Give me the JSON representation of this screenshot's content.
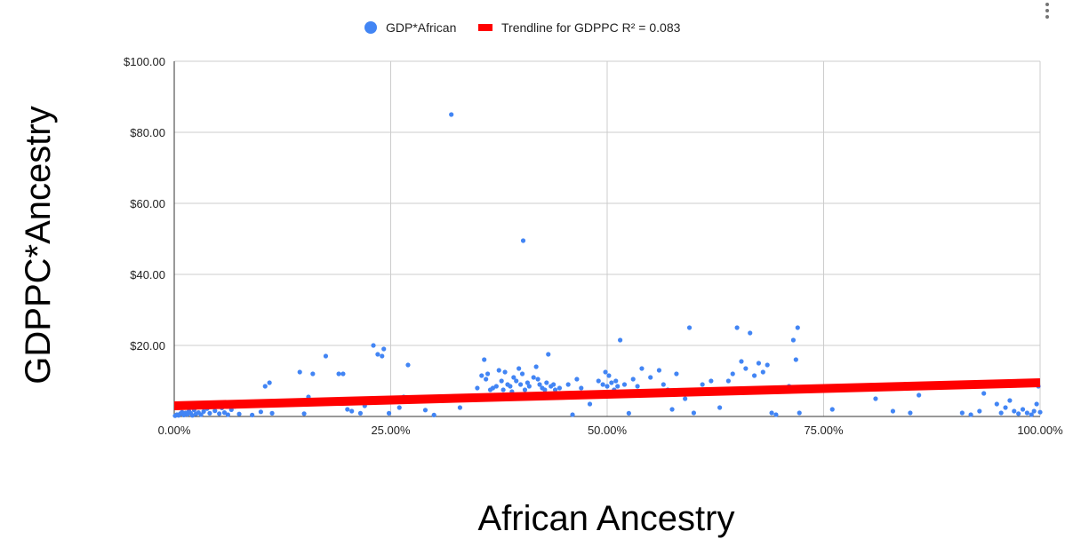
{
  "chart_data": {
    "type": "scatter",
    "title": "",
    "xlabel": "African Ancestry",
    "ylabel": "GDPPC*Ancestry",
    "xlim": [
      0,
      1
    ],
    "ylim": [
      0,
      100
    ],
    "x_ticks": [
      "0.00%",
      "25.00%",
      "50.00%",
      "75.00%",
      "100.00%"
    ],
    "y_ticks": [
      "$20.00",
      "$40.00",
      "$60.00",
      "$80.00",
      "$100.00"
    ],
    "x_tick_values": [
      0,
      0.25,
      0.5,
      0.75,
      1
    ],
    "y_tick_values": [
      20,
      40,
      60,
      80,
      100
    ],
    "grid": true,
    "legend_position": "top",
    "legend": [
      {
        "label": "GDP*African",
        "marker": "circle",
        "color": "#4285f4"
      },
      {
        "label": "Trendline for GDPPC R² = 0.083",
        "marker": "line",
        "color": "#ff0000"
      }
    ],
    "series": [
      {
        "name": "GDP*African",
        "color": "#4285f4",
        "points": [
          [
            0.001,
            0.2
          ],
          [
            0.003,
            0.5
          ],
          [
            0.005,
            0.3
          ],
          [
            0.007,
            0.8
          ],
          [
            0.009,
            1.2
          ],
          [
            0.011,
            0.4
          ],
          [
            0.013,
            1.0
          ],
          [
            0.015,
            0.6
          ],
          [
            0.017,
            1.5
          ],
          [
            0.019,
            0.9
          ],
          [
            0.021,
            0.3
          ],
          [
            0.023,
            1.8
          ],
          [
            0.025,
            0.7
          ],
          [
            0.028,
            1.1
          ],
          [
            0.031,
            0.5
          ],
          [
            0.034,
            1.4
          ],
          [
            0.038,
            2.2
          ],
          [
            0.041,
            0.9
          ],
          [
            0.044,
            3.0
          ],
          [
            0.047,
            1.6
          ],
          [
            0.052,
            0.8
          ],
          [
            0.055,
            2.4
          ],
          [
            0.058,
            1.1
          ],
          [
            0.062,
            0.5
          ],
          [
            0.066,
            1.9
          ],
          [
            0.07,
            2.8
          ],
          [
            0.075,
            0.7
          ],
          [
            0.09,
            0.4
          ],
          [
            0.1,
            1.3
          ],
          [
            0.105,
            8.5
          ],
          [
            0.11,
            9.5
          ],
          [
            0.113,
            0.9
          ],
          [
            0.145,
            12.5
          ],
          [
            0.15,
            0.8
          ],
          [
            0.155,
            5.5
          ],
          [
            0.16,
            12.0
          ],
          [
            0.175,
            17.0
          ],
          [
            0.19,
            12.0
          ],
          [
            0.195,
            12.0
          ],
          [
            0.2,
            2.0
          ],
          [
            0.205,
            1.5
          ],
          [
            0.215,
            0.9
          ],
          [
            0.218,
            4.0
          ],
          [
            0.22,
            3.0
          ],
          [
            0.225,
            4.8
          ],
          [
            0.23,
            20.0
          ],
          [
            0.235,
            17.5
          ],
          [
            0.24,
            17.0
          ],
          [
            0.242,
            19.0
          ],
          [
            0.248,
            0.9
          ],
          [
            0.25,
            4.5
          ],
          [
            0.26,
            2.5
          ],
          [
            0.265,
            5.5
          ],
          [
            0.27,
            14.5
          ],
          [
            0.29,
            1.8
          ],
          [
            0.3,
            0.4
          ],
          [
            0.32,
            85.0
          ],
          [
            0.33,
            2.5
          ],
          [
            0.35,
            8.0
          ],
          [
            0.355,
            11.5
          ],
          [
            0.358,
            16.0
          ],
          [
            0.36,
            10.5
          ],
          [
            0.362,
            12.0
          ],
          [
            0.365,
            7.5
          ],
          [
            0.368,
            8.0
          ],
          [
            0.37,
            6.0
          ],
          [
            0.372,
            8.5
          ],
          [
            0.375,
            13.0
          ],
          [
            0.378,
            10.0
          ],
          [
            0.38,
            7.5
          ],
          [
            0.382,
            12.5
          ],
          [
            0.385,
            9.0
          ],
          [
            0.388,
            8.5
          ],
          [
            0.39,
            7.0
          ],
          [
            0.392,
            11.0
          ],
          [
            0.395,
            10.0
          ],
          [
            0.398,
            13.5
          ],
          [
            0.4,
            9.0
          ],
          [
            0.402,
            12.0
          ],
          [
            0.403,
            49.5
          ],
          [
            0.405,
            7.5
          ],
          [
            0.408,
            9.5
          ],
          [
            0.41,
            8.5
          ],
          [
            0.412,
            6.0
          ],
          [
            0.415,
            11.0
          ],
          [
            0.418,
            14.0
          ],
          [
            0.42,
            10.5
          ],
          [
            0.422,
            9.0
          ],
          [
            0.425,
            8.0
          ],
          [
            0.428,
            7.5
          ],
          [
            0.43,
            9.5
          ],
          [
            0.432,
            17.5
          ],
          [
            0.435,
            8.5
          ],
          [
            0.438,
            9.0
          ],
          [
            0.44,
            7.5
          ],
          [
            0.445,
            8.0
          ],
          [
            0.45,
            6.0
          ],
          [
            0.455,
            9.0
          ],
          [
            0.46,
            0.5
          ],
          [
            0.465,
            10.5
          ],
          [
            0.47,
            8.0
          ],
          [
            0.48,
            3.5
          ],
          [
            0.49,
            10.0
          ],
          [
            0.495,
            9.0
          ],
          [
            0.498,
            12.5
          ],
          [
            0.5,
            8.5
          ],
          [
            0.502,
            11.5
          ],
          [
            0.505,
            9.5
          ],
          [
            0.508,
            7.5
          ],
          [
            0.51,
            10.0
          ],
          [
            0.512,
            8.5
          ],
          [
            0.515,
            21.5
          ],
          [
            0.52,
            9.0
          ],
          [
            0.525,
            0.9
          ],
          [
            0.53,
            10.5
          ],
          [
            0.535,
            8.5
          ],
          [
            0.54,
            13.5
          ],
          [
            0.55,
            11.0
          ],
          [
            0.56,
            13.0
          ],
          [
            0.565,
            9.0
          ],
          [
            0.57,
            7.5
          ],
          [
            0.575,
            2.0
          ],
          [
            0.58,
            12.0
          ],
          [
            0.59,
            5.0
          ],
          [
            0.595,
            25.0
          ],
          [
            0.6,
            1.0
          ],
          [
            0.61,
            9.0
          ],
          [
            0.62,
            10.0
          ],
          [
            0.63,
            2.5
          ],
          [
            0.64,
            10.0
          ],
          [
            0.645,
            12.0
          ],
          [
            0.65,
            25.0
          ],
          [
            0.655,
            15.5
          ],
          [
            0.66,
            13.5
          ],
          [
            0.665,
            23.5
          ],
          [
            0.67,
            11.5
          ],
          [
            0.675,
            15.0
          ],
          [
            0.68,
            12.5
          ],
          [
            0.685,
            14.5
          ],
          [
            0.69,
            1.0
          ],
          [
            0.695,
            0.5
          ],
          [
            0.71,
            8.5
          ],
          [
            0.715,
            21.5
          ],
          [
            0.718,
            16.0
          ],
          [
            0.72,
            25.0
          ],
          [
            0.722,
            1.0
          ],
          [
            0.76,
            2.0
          ],
          [
            0.81,
            5.0
          ],
          [
            0.83,
            1.5
          ],
          [
            0.85,
            1.0
          ],
          [
            0.86,
            6.0
          ],
          [
            0.91,
            1.0
          ],
          [
            0.92,
            0.5
          ],
          [
            0.93,
            1.5
          ],
          [
            0.935,
            6.5
          ],
          [
            0.95,
            3.5
          ],
          [
            0.955,
            1.0
          ],
          [
            0.96,
            2.5
          ],
          [
            0.965,
            4.5
          ],
          [
            0.97,
            1.5
          ],
          [
            0.975,
            0.8
          ],
          [
            0.98,
            2.0
          ],
          [
            0.985,
            1.0
          ],
          [
            0.99,
            0.5
          ],
          [
            0.993,
            1.5
          ],
          [
            0.996,
            3.5
          ],
          [
            0.998,
            8.5
          ],
          [
            1.0,
            1.2
          ]
        ]
      }
    ],
    "trendline": {
      "name": "Trendline for GDPPC R² = 0.083",
      "color": "#ff0000",
      "x": [
        0,
        1
      ],
      "y": [
        3.0,
        9.5
      ]
    }
  },
  "menu": {
    "icon": "more-vert-icon"
  }
}
